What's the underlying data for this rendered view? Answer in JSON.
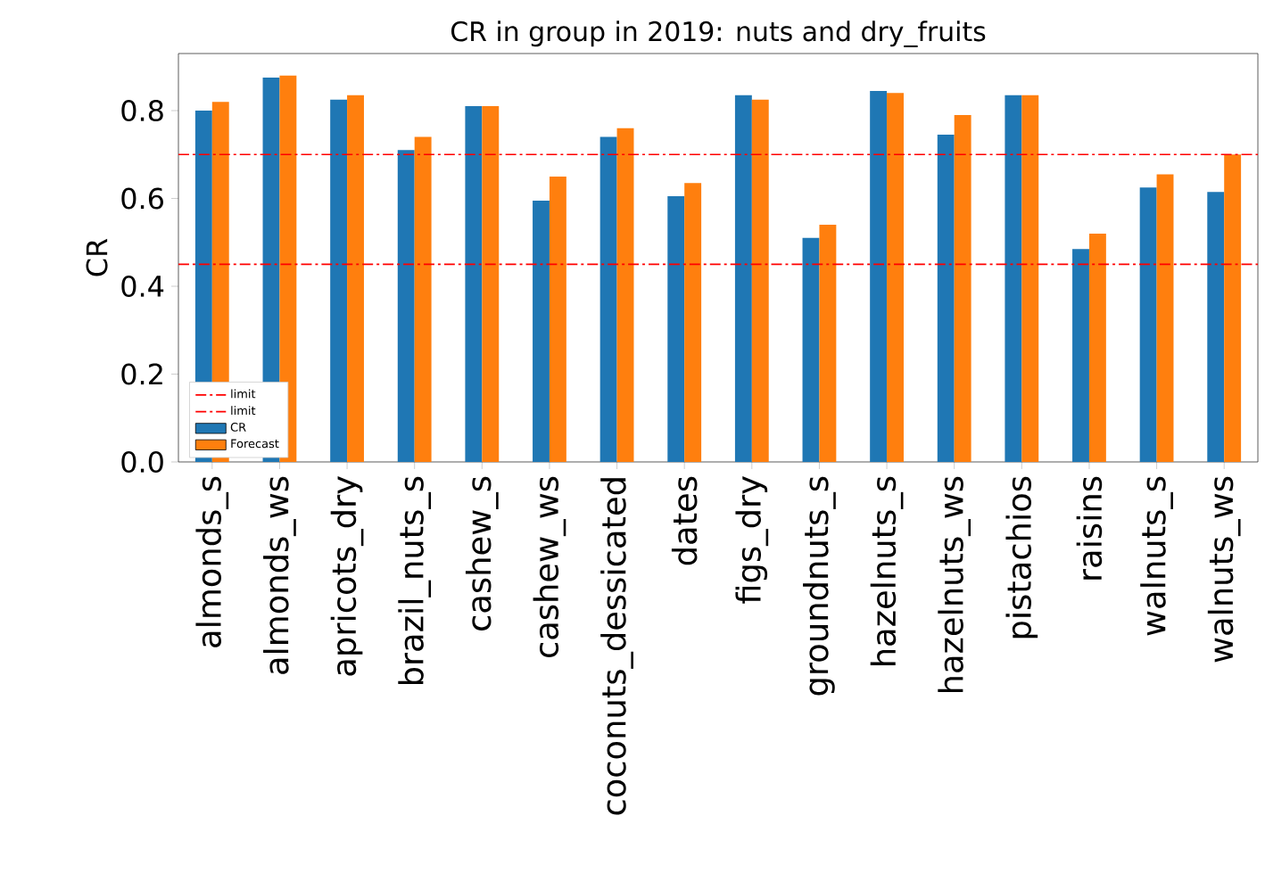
{
  "chart_data": {
    "type": "bar",
    "title": "CR in group in 2019: nuts and dry_fruits",
    "ylabel": "CR",
    "categories": [
      "almonds_s",
      "almonds_ws",
      "apricots_dry",
      "brazil_nuts_s",
      "cashew_s",
      "cashew_ws",
      "coconuts_dessicated",
      "dates",
      "figs_dry",
      "groundnuts_s",
      "hazelnuts_s",
      "hazelnuts_ws",
      "pistachios",
      "raisins",
      "walnuts_s",
      "walnuts_ws"
    ],
    "series": [
      {
        "name": "CR",
        "color": "#1f77b4",
        "values": [
          0.8,
          0.875,
          0.825,
          0.71,
          0.81,
          0.595,
          0.74,
          0.605,
          0.835,
          0.51,
          0.845,
          0.745,
          0.835,
          0.485,
          0.625,
          0.615
        ]
      },
      {
        "name": "Forecast",
        "color": "#ff7f0e",
        "values": [
          0.82,
          0.88,
          0.835,
          0.74,
          0.81,
          0.65,
          0.76,
          0.635,
          0.825,
          0.54,
          0.84,
          0.79,
          0.835,
          0.52,
          0.655,
          0.7
        ]
      }
    ],
    "ylim": [
      0,
      0.93
    ],
    "yticks": [
      {
        "value": 0,
        "label": "0.0"
      },
      {
        "value": 0.2,
        "label": "0.2"
      },
      {
        "value": 0.4,
        "label": "0.4"
      },
      {
        "value": 0.6,
        "label": "0.6"
      },
      {
        "value": 0.8,
        "label": "0.8"
      }
    ],
    "ref_lines": [
      {
        "axis": "y",
        "value": 0.7,
        "label": "limit",
        "color": "#ff0000",
        "line_style": "dashdot"
      },
      {
        "axis": "y",
        "value": 0.45,
        "label": "limit",
        "color": "#ff0000",
        "line_style": "dashdot"
      }
    ],
    "legend": "bottom left",
    "grid": false
  }
}
